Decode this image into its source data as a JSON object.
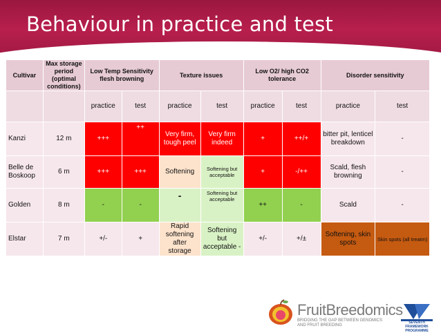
{
  "slide": {
    "title": "Behaviour in practice and test"
  },
  "table": {
    "headers": {
      "cultivar": "Cultivar",
      "max_storage": "Max storage period (optimal conditions)",
      "low_temp": "Low Temp Sensitivity flesh browning",
      "texture": "Texture issues",
      "low_o2": "Low O2/ high CO2 tolerance",
      "disorder": "Disorder sensitivity"
    },
    "subheaders": {
      "practice": "practice",
      "test": "test"
    },
    "rows": [
      {
        "cultivar": "Kanzi",
        "storage": "12 m",
        "lowtemp_practice": "+++",
        "lowtemp_test": "++",
        "texture_practice": "Very firm, tough peel",
        "texture_test": "Very firm indeed",
        "o2_practice": "+",
        "o2_test": "++/+",
        "disorder_practice": "bitter pit, lenticel breakdown",
        "disorder_test": "-"
      },
      {
        "cultivar": "Belle de Boskoop",
        "storage": "6 m",
        "lowtemp_practice": "+++",
        "lowtemp_test": "+++",
        "texture_practice": "Softening",
        "texture_test": "Softening but acceptable",
        "o2_practice": "+",
        "o2_test": "-/++",
        "disorder_practice": "Scald, flesh browning",
        "disorder_test": "-"
      },
      {
        "cultivar": "Golden",
        "storage": "8 m",
        "lowtemp_practice": "-",
        "lowtemp_test": "-",
        "texture_practice": "-",
        "texture_test": "Softening but acceptable",
        "o2_practice": "++",
        "o2_test": "-",
        "disorder_practice": "Scald",
        "disorder_test": "-"
      },
      {
        "cultivar": "Elstar",
        "storage": "7 m",
        "lowtemp_practice": "+/-",
        "lowtemp_test": "+",
        "texture_practice": "Rapid softening after storage",
        "texture_test": "Softening but acceptable -",
        "o2_practice": "+/-",
        "o2_test": "+/±",
        "disorder_practice": "Softening, skin spots",
        "disorder_test": "Skin spots (all treatm)"
      }
    ]
  },
  "footer": {
    "brand": "FruitBreedomics",
    "tagline_1": "BRIDGING THE GAP BETWEEN GENOMICS",
    "tagline_2": "AND FRUIT BREEDING",
    "fp7_label": "SEVENTH FRAMEWORK PROGRAMME",
    "logo_icon": "apple-logo-icon",
    "fp7_icon": "fp7-logo-icon"
  }
}
